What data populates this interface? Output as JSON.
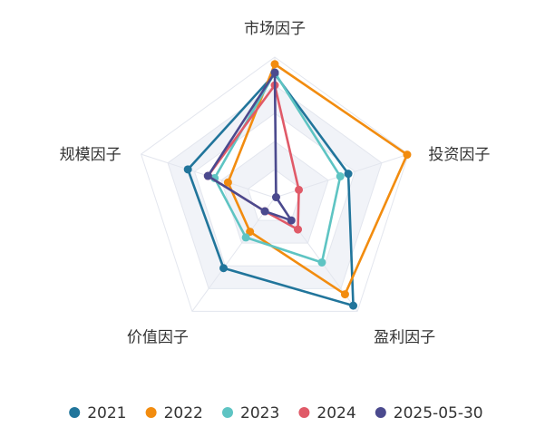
{
  "chart_data": {
    "type": "radar",
    "indicators": [
      "市场因子",
      "投资因子",
      "盈利因子",
      "价值因子",
      "规模因子"
    ],
    "max": 1.0,
    "series": [
      {
        "name": "2021",
        "color": "#21759b",
        "values": [
          0.88,
          0.55,
          0.95,
          0.62,
          0.65
        ]
      },
      {
        "name": "2022",
        "color": "#f28c0f",
        "values": [
          0.95,
          0.99,
          0.85,
          0.3,
          0.35
        ]
      },
      {
        "name": "2023",
        "color": "#5ec4c3",
        "values": [
          0.89,
          0.49,
          0.57,
          0.35,
          0.45
        ]
      },
      {
        "name": "2024",
        "color": "#e05a68",
        "values": [
          0.8,
          0.18,
          0.28,
          0.12,
          0.5
        ]
      },
      {
        "name": "2025-05-30",
        "color": "#4b4a8e",
        "values": [
          0.89,
          0.01,
          0.2,
          0.12,
          0.5
        ]
      }
    ],
    "legend_position": "bottom",
    "grid_rings": 5,
    "ring_fill": "#f1f3f8",
    "grid_line_color": "#e3e6ee"
  }
}
